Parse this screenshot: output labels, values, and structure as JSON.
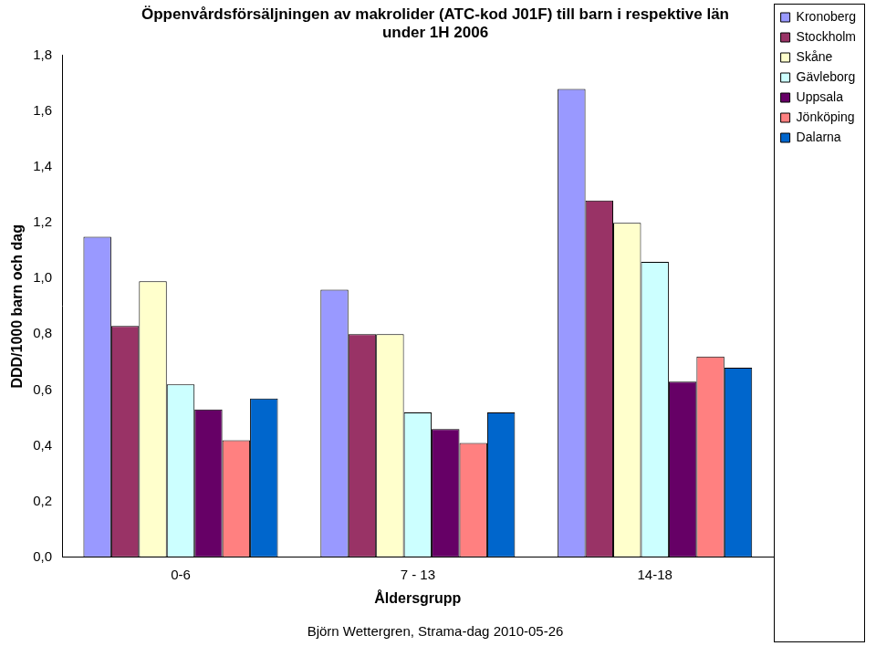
{
  "chart_data": {
    "type": "bar",
    "title": [
      "Öppenvårdsförsäljningen av makrolider (ATC-kod J01F) till barn i respektive län",
      "under 1H 2006"
    ],
    "y_label": "DDD/1000 barn och dag",
    "x_label": "Åldersgrupp",
    "annotation": "Björn Wettergren, Strama-dag 2010-05-26",
    "categories": [
      "0-6",
      "7 - 13",
      "14-18"
    ],
    "series": [
      {
        "name": "Kronoberg",
        "color": "#9999ff",
        "values": [
          1.15,
          0.96,
          1.68
        ]
      },
      {
        "name": "Stockholm",
        "color": "#993366",
        "values": [
          0.83,
          0.8,
          1.28
        ]
      },
      {
        "name": "Skåne",
        "color": "#ffffcc",
        "values": [
          0.99,
          0.8,
          1.2
        ]
      },
      {
        "name": "Gävleborg",
        "color": "#ccffff",
        "values": [
          0.62,
          0.52,
          1.06
        ]
      },
      {
        "name": "Uppsala",
        "color": "#660066",
        "values": [
          0.53,
          0.46,
          0.63
        ]
      },
      {
        "name": "Jönköping",
        "color": "#ff8080",
        "values": [
          0.42,
          0.41,
          0.72
        ]
      },
      {
        "name": "Dalarna",
        "color": "#0066cc",
        "values": [
          0.57,
          0.52,
          0.68
        ]
      }
    ],
    "ylim": [
      0,
      1.8
    ],
    "yticks": [
      {
        "value": 0,
        "label": "0,0"
      },
      {
        "value": 0.2,
        "label": "0,2"
      },
      {
        "value": 0.4,
        "label": "0,4"
      },
      {
        "value": 0.6,
        "label": "0,6"
      },
      {
        "value": 0.8,
        "label": "0,8"
      },
      {
        "value": 1.0,
        "label": "1,0"
      },
      {
        "value": 1.2,
        "label": "1,2"
      },
      {
        "value": 1.4,
        "label": "1,4"
      },
      {
        "value": 1.6,
        "label": "1,6"
      },
      {
        "value": 1.8,
        "label": "1,8"
      }
    ],
    "grid": false,
    "legend": "right"
  }
}
